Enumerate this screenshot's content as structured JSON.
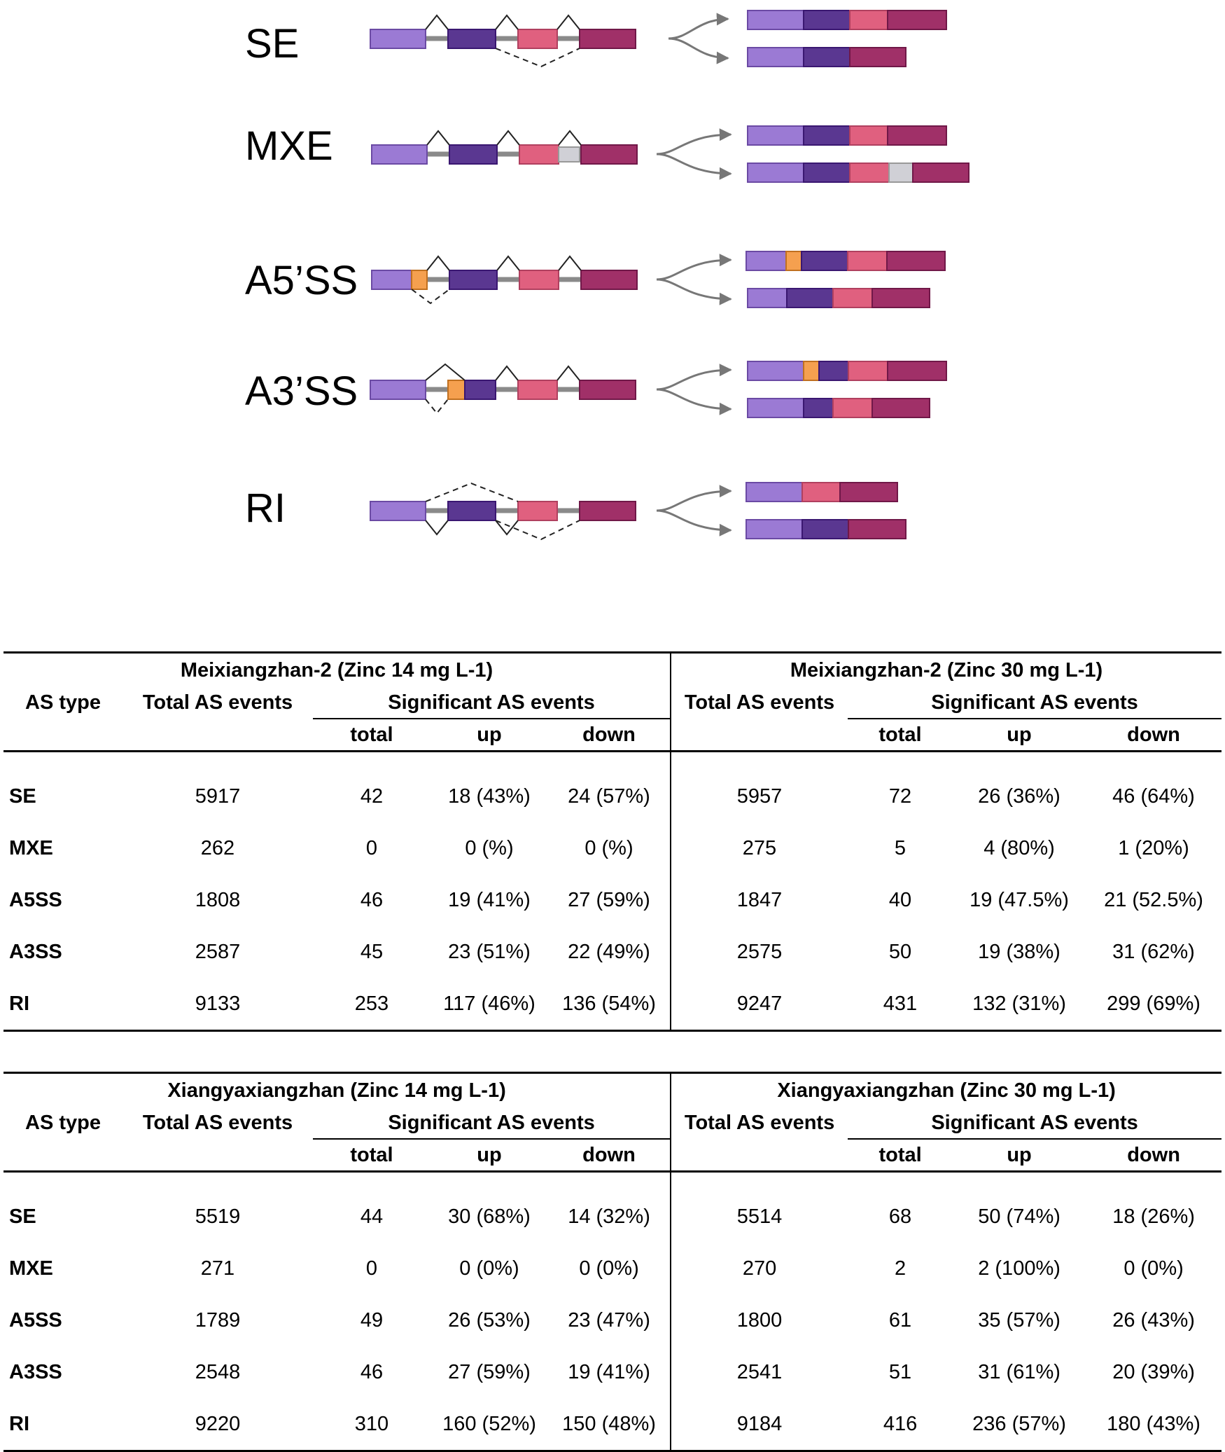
{
  "diagram": {
    "labels": [
      "SE",
      "MXE",
      "A5’SS",
      "A3’SS",
      "RI"
    ],
    "colors": {
      "exon_light": "#9b7ad4",
      "exon_dark": "#5a3791",
      "exon_pink": "#e0607f",
      "exon_maroon": "#a03068",
      "exon_orange": "#f5a04f",
      "exon_gray": "#d0d0d6",
      "intron": "#8a8a8a",
      "arrow": "#777777"
    }
  },
  "tables": [
    {
      "left_title": "Meixiangzhan-2 (Zinc 14 mg L-1)",
      "right_title": "Meixiangzhan-2 (Zinc 30 mg L-1)",
      "headers": {
        "as_type": "AS type",
        "total_as": "Total AS events",
        "significant": "Significant AS events",
        "total": "total",
        "up": "up",
        "down": "down"
      },
      "rows": [
        {
          "type": "SE",
          "l_total_as": "5917",
          "l_total": "42",
          "l_up": "18 (43%)",
          "l_down": "24 (57%)",
          "r_total_as": "5957",
          "r_total": "72",
          "r_up": "26 (36%)",
          "r_down": "46 (64%)"
        },
        {
          "type": "MXE",
          "l_total_as": "262",
          "l_total": "0",
          "l_up": "0 (%)",
          "l_down": "0 (%)",
          "r_total_as": "275",
          "r_total": "5",
          "r_up": "4 (80%)",
          "r_down": "1 (20%)"
        },
        {
          "type": "A5SS",
          "l_total_as": "1808",
          "l_total": "46",
          "l_up": "19 (41%)",
          "l_down": "27 (59%)",
          "r_total_as": "1847",
          "r_total": "40",
          "r_up": "19 (47.5%)",
          "r_down": "21 (52.5%)"
        },
        {
          "type": "A3SS",
          "l_total_as": "2587",
          "l_total": "45",
          "l_up": "23 (51%)",
          "l_down": "22 (49%)",
          "r_total_as": "2575",
          "r_total": "50",
          "r_up": "19 (38%)",
          "r_down": "31 (62%)"
        },
        {
          "type": "RI",
          "l_total_as": "9133",
          "l_total": "253",
          "l_up": "117 (46%)",
          "l_down": "136 (54%)",
          "r_total_as": "9247",
          "r_total": "431",
          "r_up": "132 (31%)",
          "r_down": "299 (69%)"
        }
      ]
    },
    {
      "left_title": "Xiangyaxiangzhan (Zinc 14 mg L-1)",
      "right_title": "Xiangyaxiangzhan (Zinc 30 mg L-1)",
      "headers": {
        "as_type": "AS type",
        "total_as": "Total AS events",
        "significant": "Significant AS events",
        "total": "total",
        "up": "up",
        "down": "down"
      },
      "rows": [
        {
          "type": "SE",
          "l_total_as": "5519",
          "l_total": "44",
          "l_up": "30 (68%)",
          "l_down": "14 (32%)",
          "r_total_as": "5514",
          "r_total": "68",
          "r_up": "50 (74%)",
          "r_down": "18 (26%)"
        },
        {
          "type": "MXE",
          "l_total_as": "271",
          "l_total": "0",
          "l_up": "0 (0%)",
          "l_down": "0 (0%)",
          "r_total_as": "270",
          "r_total": "2",
          "r_up": "2 (100%)",
          "r_down": "0 (0%)"
        },
        {
          "type": "A5SS",
          "l_total_as": "1789",
          "l_total": "49",
          "l_up": "26 (53%)",
          "l_down": "23 (47%)",
          "r_total_as": "1800",
          "r_total": "61",
          "r_up": "35 (57%)",
          "r_down": "26 (43%)"
        },
        {
          "type": "A3SS",
          "l_total_as": "2548",
          "l_total": "46",
          "l_up": "27 (59%)",
          "l_down": "19 (41%)",
          "r_total_as": "2541",
          "r_total": "51",
          "r_up": "31 (61%)",
          "r_down": "20 (39%)"
        },
        {
          "type": "RI",
          "l_total_as": "9220",
          "l_total": "310",
          "l_up": "160 (52%)",
          "l_down": "150 (48%)",
          "r_total_as": "9184",
          "r_total": "416",
          "r_up": "236 (57%)",
          "r_down": "180 (43%)"
        }
      ]
    }
  ]
}
